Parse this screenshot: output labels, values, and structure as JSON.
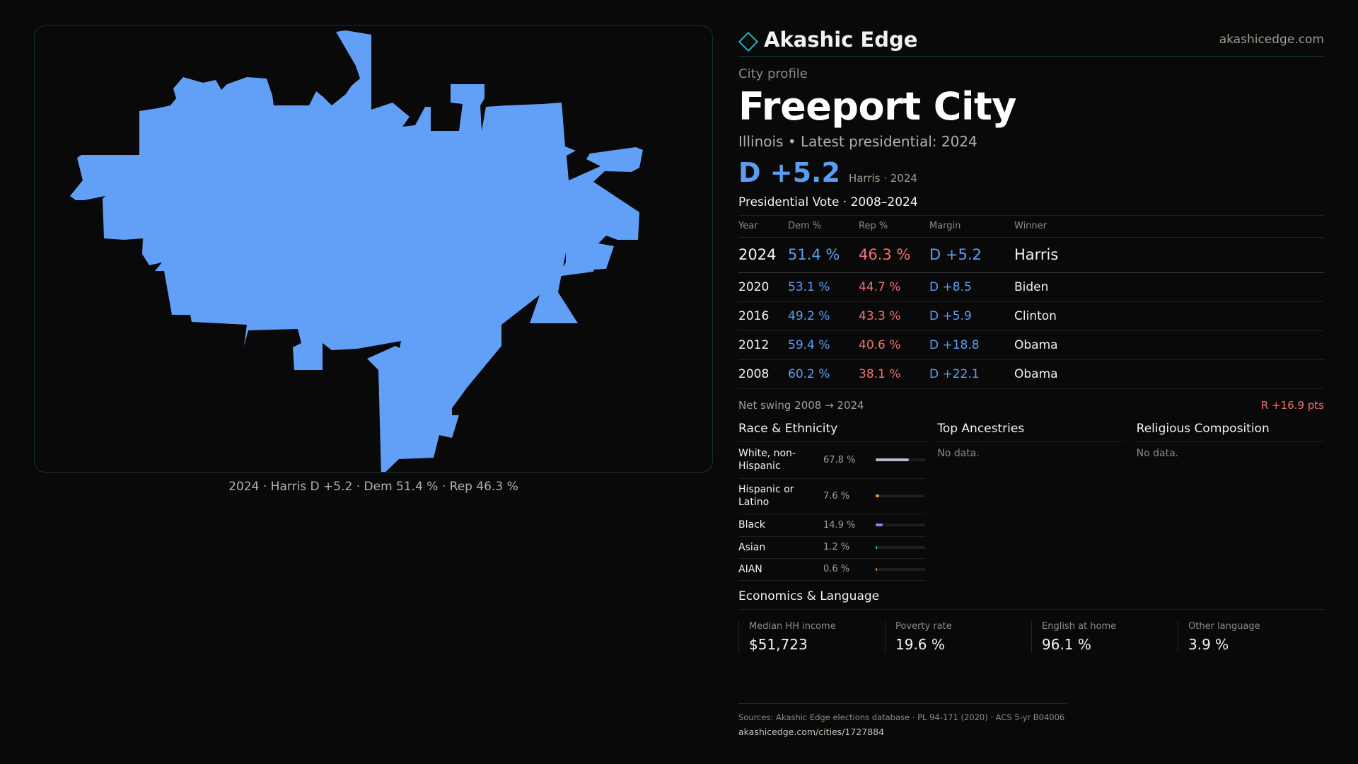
{
  "map": {
    "caption": "2024 · Harris D +5.2 · Dem 51.4 % · Rep 46.3 %",
    "fill_color": "#62a0f8"
  },
  "header": {
    "brand": "Akashic Edge",
    "site": "akashicedge.com",
    "icon": "diamond-logo-icon"
  },
  "profile": {
    "label": "City profile",
    "city": "Freeport City",
    "subtitle": "Illinois • Latest presidential: 2024",
    "margin": "D +5.2",
    "margin_sub": "Harris · 2024"
  },
  "votes": {
    "title": "Presidential Vote · 2008–2024",
    "headers": {
      "year": "Year",
      "dem": "Dem %",
      "rep": "Rep %",
      "margin": "Margin",
      "winner": "Winner"
    },
    "rows": [
      {
        "year": "2024",
        "dem": "51.4 %",
        "rep": "46.3 %",
        "margin": "D +5.2",
        "winner": "Harris"
      },
      {
        "year": "2020",
        "dem": "53.1 %",
        "rep": "44.7 %",
        "margin": "D +8.5",
        "winner": "Biden"
      },
      {
        "year": "2016",
        "dem": "49.2 %",
        "rep": "43.3 %",
        "margin": "D +5.9",
        "winner": "Clinton"
      },
      {
        "year": "2012",
        "dem": "59.4 %",
        "rep": "40.6 %",
        "margin": "D +18.8",
        "winner": "Obama"
      },
      {
        "year": "2008",
        "dem": "60.2 %",
        "rep": "38.1 %",
        "margin": "D +22.1",
        "winner": "Obama"
      }
    ],
    "swing_label": "Net swing 2008 → 2024",
    "swing_value": "R +16.9 pts"
  },
  "race": {
    "title": "Race & Ethnicity",
    "rows": [
      {
        "name": "White, non-Hispanic",
        "pct": "67.8 %",
        "share": 0.678,
        "color": "#b9b9c9"
      },
      {
        "name": "Hispanic or Latino",
        "pct": "7.6 %",
        "share": 0.076,
        "color": "#e0a12b"
      },
      {
        "name": "Black",
        "pct": "14.9 %",
        "share": 0.149,
        "color": "#9b7cf0"
      },
      {
        "name": "Asian",
        "pct": "1.2 %",
        "share": 0.012,
        "color": "#3fb6a8"
      },
      {
        "name": "AIAN",
        "pct": "0.6 %",
        "share": 0.006,
        "color": "#c97b3a"
      }
    ]
  },
  "ancestries": {
    "title": "Top Ancestries",
    "empty": "No data."
  },
  "religion": {
    "title": "Religious Composition",
    "empty": "No data."
  },
  "economics": {
    "title": "Economics & Language",
    "cells": [
      {
        "label": "Median HH income",
        "value": "$51,723"
      },
      {
        "label": "Poverty rate",
        "value": "19.6 %"
      },
      {
        "label": "English at home",
        "value": "96.1 %"
      },
      {
        "label": "Other language",
        "value": "3.9 %"
      }
    ]
  },
  "footer": {
    "sources": "Sources: Akashic Edge elections database · PL 94-171 (2020) · ACS 5-yr B04006",
    "url": "akashicedge.com/cities/1727884"
  }
}
